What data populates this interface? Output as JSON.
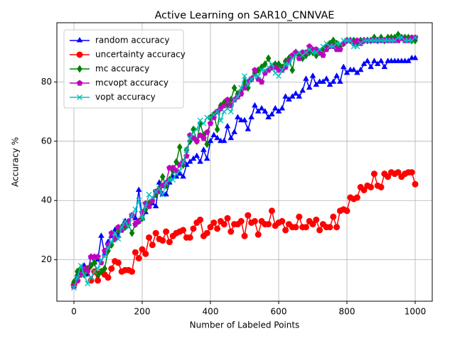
{
  "chart_data": {
    "type": "line",
    "title": "Active Learning on SAR10_CNNVAE",
    "xlabel": "Number of Labeled Points",
    "ylabel": "Accuracy %",
    "x": [
      0,
      10,
      20,
      30,
      40,
      50,
      60,
      70,
      80,
      90,
      100,
      110,
      120,
      130,
      140,
      150,
      160,
      170,
      180,
      190,
      200,
      210,
      220,
      230,
      240,
      250,
      260,
      270,
      280,
      290,
      300,
      310,
      320,
      330,
      340,
      350,
      360,
      370,
      380,
      390,
      400,
      410,
      420,
      430,
      440,
      450,
      460,
      470,
      480,
      490,
      500,
      510,
      520,
      530,
      540,
      550,
      560,
      570,
      580,
      590,
      600,
      610,
      620,
      630,
      640,
      650,
      660,
      670,
      680,
      690,
      700,
      710,
      720,
      730,
      740,
      750,
      760,
      770,
      780,
      790,
      800,
      810,
      820,
      830,
      840,
      850,
      860,
      870,
      880,
      890,
      900,
      910,
      920,
      930,
      940,
      950,
      960,
      970,
      980,
      990,
      1000
    ],
    "series": [
      {
        "name": "random accuracy",
        "color": "#0000ff",
        "marker": "triangle",
        "values": [
          11,
          15,
          17,
          18,
          15,
          21,
          19,
          20,
          28,
          22,
          26,
          28,
          30,
          28,
          31,
          33,
          32,
          35,
          34,
          43.5,
          34,
          36,
          38,
          39,
          38,
          46,
          42,
          42,
          46,
          48,
          48,
          49,
          48,
          52,
          53,
          54,
          55,
          53,
          57,
          54,
          60,
          62,
          61,
          60,
          60,
          65,
          61,
          63,
          68,
          67,
          67,
          64,
          68,
          72,
          70,
          71,
          70,
          68,
          69,
          71,
          70,
          71,
          75,
          74,
          75,
          76,
          75,
          77,
          81,
          78,
          82,
          79,
          80,
          80,
          81,
          79,
          80,
          82,
          80,
          85,
          83,
          84,
          84,
          83,
          84,
          86,
          87,
          85,
          87,
          86,
          87,
          85,
          87,
          87,
          87,
          87,
          87,
          87,
          87,
          88,
          88
        ]
      },
      {
        "name": "uncertainty accuracy",
        "color": "#ff0000",
        "marker": "circle",
        "values": [
          11.5,
          13,
          15,
          16,
          17,
          13,
          16,
          13,
          16,
          15,
          14,
          17,
          19.5,
          19,
          16,
          16.5,
          16.5,
          16,
          22.5,
          20.5,
          23.5,
          22,
          27.5,
          25,
          29,
          27,
          26.5,
          29.5,
          26,
          28,
          29,
          29.5,
          30,
          27.5,
          27.5,
          30.5,
          32.5,
          33.5,
          28,
          29,
          31,
          32.5,
          30.5,
          33,
          32,
          34,
          29.5,
          32,
          32,
          33,
          28,
          35,
          32.5,
          33,
          28.5,
          33,
          32,
          32,
          36.5,
          31.5,
          32.5,
          33,
          30,
          32,
          31,
          31,
          34.5,
          31,
          31,
          33,
          32,
          33.5,
          30,
          32,
          31,
          31,
          34.5,
          31,
          36.5,
          37,
          36.5,
          41,
          40.5,
          41,
          44.5,
          43.5,
          45,
          44.5,
          49,
          45,
          44.5,
          49,
          48,
          49.5,
          49,
          49.5,
          48,
          49,
          49.5,
          49.5,
          45.5
        ]
      },
      {
        "name": "mc accuracy",
        "color": "#008000",
        "marker": "diamond",
        "values": [
          12.5,
          16,
          17,
          15,
          17,
          18,
          19,
          15,
          16,
          17,
          23,
          25,
          27,
          30,
          31,
          31,
          32,
          29,
          32,
          33,
          34,
          37,
          39,
          40,
          42,
          44,
          48,
          45,
          47,
          50,
          53,
          58,
          52,
          57,
          60,
          64,
          60,
          66,
          62,
          59,
          68,
          69,
          64,
          72,
          73,
          72,
          74,
          78,
          76,
          77,
          80,
          78,
          81,
          83,
          84,
          85,
          86,
          88,
          85,
          86,
          86,
          85,
          87,
          88,
          84,
          90,
          89,
          88,
          89,
          90,
          90,
          89,
          90,
          91,
          92,
          93,
          94,
          93,
          92,
          93,
          94,
          94,
          94,
          93,
          94,
          94,
          94,
          94,
          95,
          94,
          95,
          94,
          95,
          95,
          95,
          96,
          95,
          95,
          95,
          94,
          94
        ]
      },
      {
        "name": "mcvopt accuracy",
        "color": "#bf00bf",
        "marker": "pentagon",
        "values": [
          11,
          13,
          15,
          17,
          16,
          21,
          21,
          21,
          19,
          23,
          25,
          29,
          27,
          31,
          30,
          32,
          33,
          35,
          32,
          33,
          36,
          39,
          38,
          40,
          43,
          43,
          45,
          46,
          51,
          51,
          50,
          52,
          53,
          55,
          62,
          61,
          60,
          62,
          61,
          63,
          66,
          68,
          70,
          71,
          72,
          74,
          72,
          74,
          75,
          76,
          78,
          80,
          81,
          84,
          81,
          80,
          83,
          84,
          85,
          85,
          84,
          84,
          85,
          87,
          89,
          90,
          88,
          90,
          90,
          92,
          91,
          91,
          90,
          89,
          91,
          92,
          92,
          91,
          91,
          93,
          94,
          94,
          93,
          94,
          93,
          94,
          94,
          94,
          94,
          94,
          94,
          94,
          94,
          94,
          94,
          94,
          95,
          94,
          94,
          95,
          95
        ]
      },
      {
        "name": "vopt accuracy",
        "color": "#00bfbf",
        "marker": "x",
        "values": [
          10.5,
          14,
          18,
          15,
          12,
          14,
          16,
          17,
          20,
          21,
          24,
          26,
          29,
          27,
          31,
          33,
          31,
          35,
          37,
          40,
          34,
          38,
          42,
          41,
          43,
          44,
          42,
          46,
          47,
          47,
          49,
          50,
          53,
          57,
          61,
          63,
          64,
          67,
          66,
          68,
          68,
          69,
          70,
          67,
          70,
          71,
          70,
          74,
          75,
          78,
          82,
          79,
          81,
          82,
          82,
          84,
          84,
          85,
          86,
          83,
          82,
          84,
          86,
          86,
          88,
          89,
          90,
          89,
          90,
          91,
          90,
          90,
          91,
          92,
          93,
          92,
          92,
          93,
          93,
          94,
          94,
          94,
          92,
          92,
          93,
          94,
          94,
          94,
          94,
          94,
          94,
          94,
          94,
          94,
          94,
          95,
          95,
          94,
          94,
          94,
          95
        ]
      }
    ],
    "xlim": [
      -50,
      1050
    ],
    "xticks": [
      0,
      200,
      400,
      600,
      800,
      1000
    ],
    "ylim": [
      6,
      100
    ],
    "yticks": [
      20,
      40,
      60,
      80
    ],
    "grid": true,
    "legend": "upper left"
  }
}
